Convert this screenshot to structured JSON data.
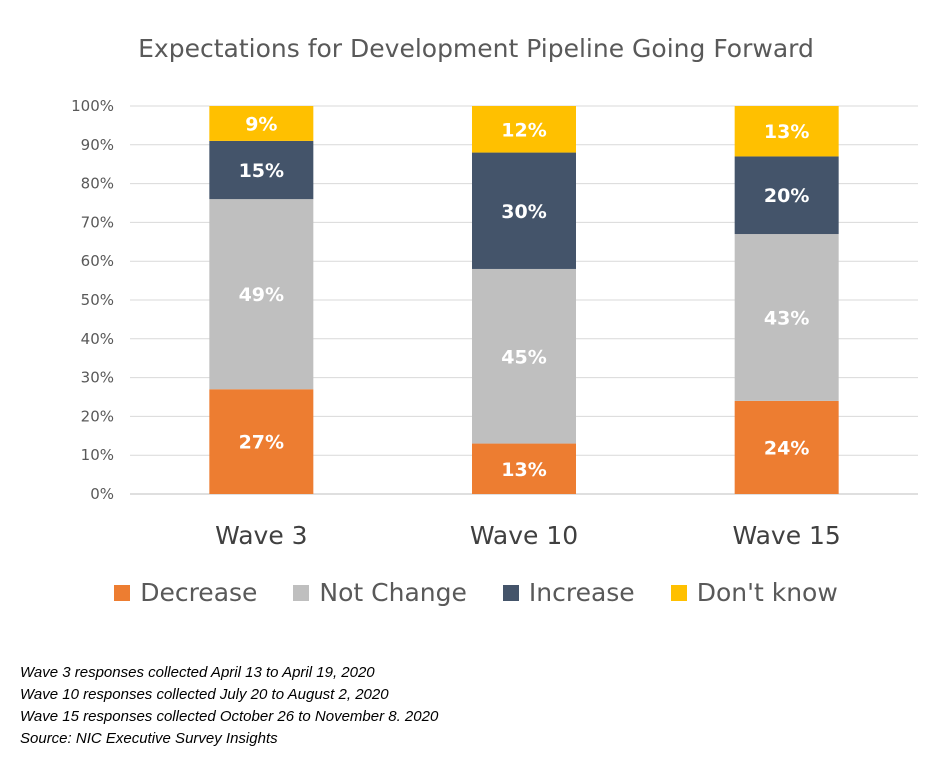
{
  "chart_data": {
    "type": "bar",
    "stacked": true,
    "title": "Expectations for Development Pipeline Going Forward",
    "categories": [
      "Wave 3",
      "Wave 10",
      "Wave 15"
    ],
    "ylim": [
      0,
      100
    ],
    "yticks": [
      "0%",
      "10%",
      "20%",
      "30%",
      "40%",
      "50%",
      "60%",
      "70%",
      "80%",
      "90%",
      "100%"
    ],
    "grid": true,
    "legend_position": "bottom",
    "series": [
      {
        "name": "Decrease",
        "color": "#ED7D31",
        "values": [
          27,
          13,
          24
        ],
        "labels": [
          "27%",
          "13%",
          "24%"
        ]
      },
      {
        "name": "Not Change",
        "color": "#BFBFBF",
        "values": [
          49,
          45,
          43
        ],
        "labels": [
          "49%",
          "45%",
          "43%"
        ]
      },
      {
        "name": "Increase",
        "color": "#44546A",
        "values": [
          15,
          30,
          20
        ],
        "labels": [
          "15%",
          "30%",
          "20%"
        ]
      },
      {
        "name": "Don't know",
        "color": "#FFC000",
        "values": [
          9,
          12,
          13
        ],
        "labels": [
          "9%",
          "12%",
          "13%"
        ]
      }
    ]
  },
  "notes": [
    "Wave 3 responses collected April 13 to April 19, 2020",
    "Wave 10 responses collected July 20 to August 2, 2020",
    "Wave 15 responses collected October 26 to November 8. 2020",
    "Source: NIC Executive Survey Insights"
  ]
}
